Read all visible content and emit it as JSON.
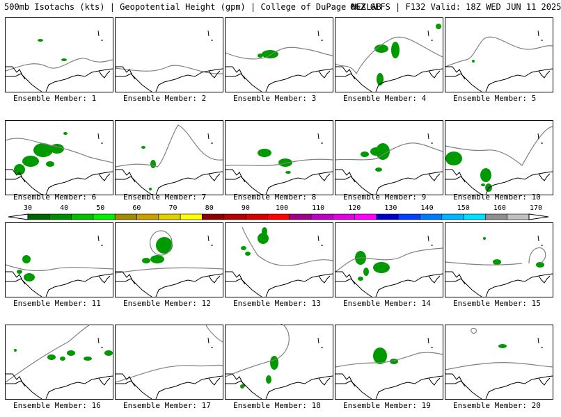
{
  "header": {
    "left_title": "500mb Isotachs (kts) | Geopotential Height (gpm) | College of DuPage NEXLAB",
    "right_title": "06Z GEFS | F132 Valid: 18Z WED JUN 11 2025"
  },
  "member_label_prefix": "Ensemble Member:",
  "members": [
    {
      "id": 1,
      "label": "Ensemble Member: 1"
    },
    {
      "id": 2,
      "label": "Ensemble Member: 2"
    },
    {
      "id": 3,
      "label": "Ensemble Member: 3"
    },
    {
      "id": 4,
      "label": "Ensemble Member: 4"
    },
    {
      "id": 5,
      "label": "Ensemble Member: 5"
    },
    {
      "id": 6,
      "label": "Ensemble Member: 6"
    },
    {
      "id": 7,
      "label": "Ensemble Member: 7"
    },
    {
      "id": 8,
      "label": "Ensemble Member: 8"
    },
    {
      "id": 9,
      "label": "Ensemble Member: 9"
    },
    {
      "id": 10,
      "label": "Ensemble Member: 10"
    },
    {
      "id": 11,
      "label": "Ensemble Member: 11"
    },
    {
      "id": 12,
      "label": "Ensemble Member: 12"
    },
    {
      "id": 13,
      "label": "Ensemble Member: 13"
    },
    {
      "id": 14,
      "label": "Ensemble Member: 14"
    },
    {
      "id": 15,
      "label": "Ensemble Member: 15"
    },
    {
      "id": 16,
      "label": "Ensemble Member: 16"
    },
    {
      "id": 17,
      "label": "Ensemble Member: 17"
    },
    {
      "id": 18,
      "label": "Ensemble Member: 18"
    },
    {
      "id": 19,
      "label": "Ensemble Member: 19"
    },
    {
      "id": 20,
      "label": "Ensemble Member: 20"
    }
  ],
  "colorbar": {
    "ticks": [
      "30",
      "40",
      "50",
      "60",
      "70",
      "80",
      "90",
      "100",
      "110",
      "120",
      "130",
      "140",
      "150",
      "160",
      "170"
    ],
    "colors": [
      "#006400",
      "#008c00",
      "#00c000",
      "#00f000",
      "#a08c00",
      "#c8a000",
      "#e0d000",
      "#ffff00",
      "#8c0000",
      "#b40000",
      "#d20000",
      "#ff0000",
      "#a0008c",
      "#c000c0",
      "#e000e0",
      "#ff00ff",
      "#0000c8",
      "#0040ff",
      "#0078ff",
      "#00b4ff",
      "#00e0ff",
      "#909090",
      "#c0c0c0"
    ],
    "end_colors": [
      "#ffffff",
      "#ffffff"
    ]
  },
  "map_colors": {
    "coast": "#000000",
    "height_contour": "#808080",
    "isotach_fill": "#009a00"
  }
}
